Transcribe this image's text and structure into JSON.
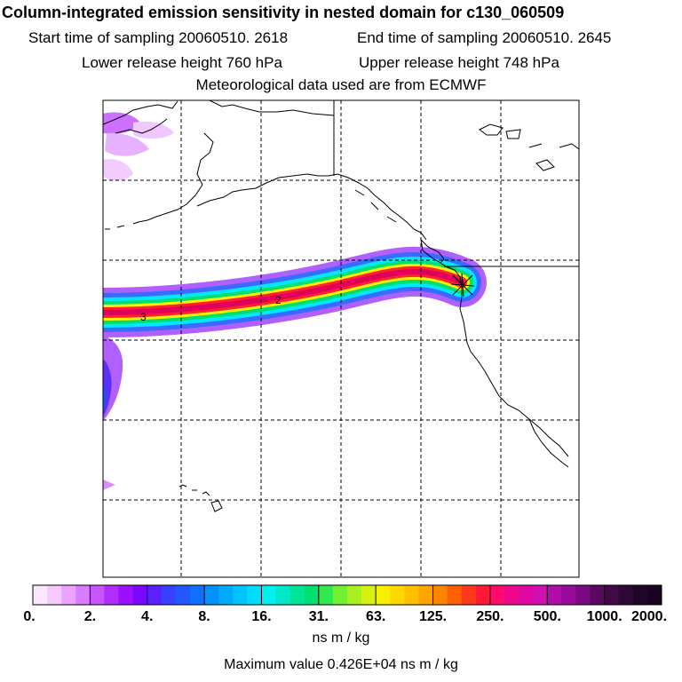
{
  "header": {
    "title": "Column-integrated emission sensitivity in nested domain for c130_060509",
    "start_label": "Start time of sampling",
    "start_value": "20060510.  2618",
    "end_label": "End time of sampling",
    "end_value": "20060510.  2645",
    "lower_label": "Lower release height",
    "lower_value": "760 hPa",
    "upper_label": "Upper release height",
    "upper_value": "748 hPa",
    "met_note": "Meteorological data used are from ECMWF"
  },
  "map": {
    "contour_labels": [
      "3",
      "2"
    ],
    "colors": {
      "plume_core": "#e0005a",
      "plume_red": "#ff2030",
      "plume_yellow": "#ffee00",
      "plume_green": "#00e070",
      "plume_cyan": "#00e8ff",
      "plume_blue": "#3060ff",
      "plume_violet": "#a020ff",
      "plume_light": "#f0b8ff"
    }
  },
  "colorbar": {
    "ticks": [
      "0.",
      "2.",
      "4.",
      "8.",
      "16.",
      "31.",
      "63.",
      "125.",
      "250.",
      "500.",
      "1000.",
      "2000."
    ],
    "colors": [
      "#fbe6ff",
      "#f5c8ff",
      "#eaa4ff",
      "#d97cff",
      "#c655ff",
      "#b02cff",
      "#9a10ff",
      "#7a08ff",
      "#5a20ff",
      "#3a40ff",
      "#2458ff",
      "#1070ff",
      "#0092ff",
      "#00aaff",
      "#00c4ff",
      "#00dcff",
      "#00f0f0",
      "#00e8c8",
      "#00e498",
      "#00e070",
      "#30e850",
      "#70f030",
      "#a8f020",
      "#d8f010",
      "#f8f000",
      "#ffd800",
      "#ffc000",
      "#ffa400",
      "#ff8400",
      "#ff6000",
      "#ff3a1c",
      "#ff1838",
      "#ff0a6a",
      "#f0088c",
      "#e008a0",
      "#d010b0",
      "#b00ca8",
      "#980a98",
      "#7a0a80",
      "#5a0860",
      "#420848",
      "#300838",
      "#200628",
      "#160420"
    ],
    "units": "ns m / kg"
  },
  "footer": {
    "max_label": "Maximum value",
    "max_value": "0.426E+04 ns m / kg"
  }
}
